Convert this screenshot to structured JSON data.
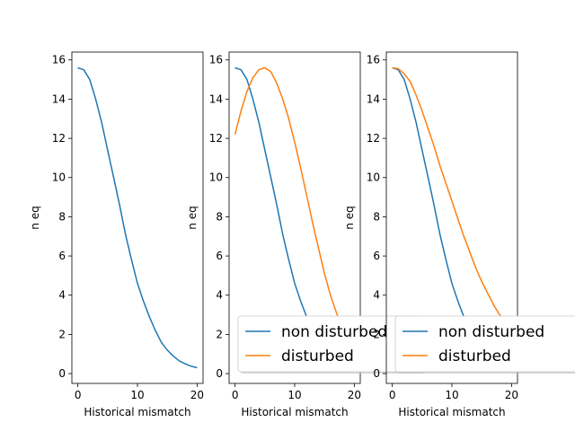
{
  "chart_data": [
    {
      "type": "line",
      "xlabel": "Historical mismatch",
      "ylabel": "n eq",
      "xlim": [
        -1,
        21
      ],
      "ylim": [
        -0.5,
        16.4
      ],
      "xticks": [
        "0",
        "10",
        "20"
      ],
      "yticks": [
        "0",
        "2",
        "4",
        "6",
        "8",
        "10",
        "12",
        "14",
        "16"
      ],
      "grid": false,
      "series": [
        {
          "color": "#1f77b4",
          "x": [
            0,
            1,
            2,
            3,
            4,
            5,
            6,
            7,
            8,
            9,
            10,
            11,
            12,
            13,
            14,
            15,
            16,
            17,
            18,
            19,
            20
          ],
          "values": [
            15.6,
            15.5,
            15.0,
            14.0,
            12.8,
            11.4,
            10.0,
            8.6,
            7.1,
            5.8,
            4.6,
            3.7,
            2.9,
            2.2,
            1.6,
            1.2,
            0.9,
            0.65,
            0.5,
            0.38,
            0.3
          ]
        }
      ]
    },
    {
      "type": "line",
      "xlabel": "Historical mismatch",
      "ylabel": "n eq",
      "xlim": [
        -1,
        21
      ],
      "ylim": [
        -0.5,
        16.4
      ],
      "xticks": [
        "0",
        "10",
        "20"
      ],
      "yticks": [
        "0",
        "2",
        "4",
        "6",
        "8",
        "10",
        "12",
        "14",
        "16"
      ],
      "grid": false,
      "legend": {
        "placement": "lower-right",
        "entries": [
          "non disturbed",
          "disturbed"
        ]
      },
      "series": [
        {
          "name": "non disturbed",
          "color": "#1f77b4",
          "x": [
            0,
            1,
            2,
            3,
            4,
            5,
            6,
            7,
            8,
            9,
            10,
            11,
            12,
            13,
            14,
            15,
            16,
            17,
            18,
            19,
            20
          ],
          "values": [
            15.6,
            15.5,
            15.0,
            14.0,
            12.8,
            11.4,
            10.0,
            8.6,
            7.1,
            5.8,
            4.6,
            3.7,
            2.9,
            2.2,
            1.6,
            1.2,
            0.9,
            0.65,
            0.5,
            0.38,
            0.3
          ]
        },
        {
          "name": "disturbed",
          "color": "#ff7f0e",
          "x": [
            0,
            1,
            2,
            3,
            4,
            5,
            6,
            7,
            8,
            9,
            10,
            11,
            12,
            13,
            14,
            15,
            16,
            17,
            18,
            19,
            20
          ],
          "values": [
            12.2,
            13.4,
            14.4,
            15.1,
            15.5,
            15.6,
            15.4,
            14.8,
            14.0,
            13.0,
            11.8,
            10.5,
            9.1,
            7.7,
            6.4,
            5.1,
            4.0,
            3.1,
            2.3,
            1.7,
            1.2
          ]
        }
      ]
    },
    {
      "type": "line",
      "xlabel": "Historical mismatch",
      "ylabel": "n eq",
      "xlim": [
        -1,
        21
      ],
      "ylim": [
        -0.5,
        16.4
      ],
      "xticks": [
        "0",
        "10",
        "20"
      ],
      "yticks": [
        "0",
        "2",
        "4",
        "6",
        "8",
        "10",
        "12",
        "14",
        "16"
      ],
      "grid": false,
      "legend": {
        "placement": "lower-right",
        "entries": [
          "non disturbed",
          "disturbed"
        ]
      },
      "series": [
        {
          "name": "non disturbed",
          "color": "#1f77b4",
          "x": [
            0,
            1,
            2,
            3,
            4,
            5,
            6,
            7,
            8,
            9,
            10,
            11,
            12,
            13,
            14,
            15,
            16,
            17,
            18,
            19,
            20
          ],
          "values": [
            15.6,
            15.5,
            15.0,
            14.0,
            12.8,
            11.4,
            10.0,
            8.6,
            7.1,
            5.8,
            4.6,
            3.7,
            2.9,
            2.2,
            1.6,
            1.2,
            0.9,
            0.65,
            0.5,
            0.38,
            0.3
          ]
        },
        {
          "name": "disturbed",
          "color": "#ff7f0e",
          "x": [
            0,
            1,
            2,
            3,
            4,
            5,
            6,
            7,
            8,
            9,
            10,
            11,
            12,
            13,
            14,
            15,
            16,
            17,
            18,
            19,
            20
          ],
          "values": [
            15.6,
            15.55,
            15.3,
            14.9,
            14.2,
            13.4,
            12.5,
            11.6,
            10.6,
            9.7,
            8.8,
            7.9,
            7.0,
            6.2,
            5.4,
            4.7,
            4.1,
            3.5,
            3.0,
            2.6,
            2.2
          ]
        }
      ]
    }
  ]
}
